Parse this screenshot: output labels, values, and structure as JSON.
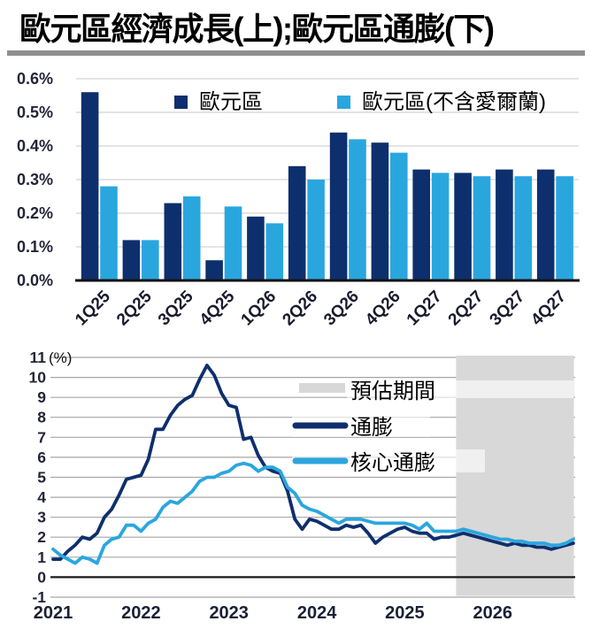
{
  "title": "歐元區經濟成長(上);歐元區通膨(下)",
  "colors": {
    "dark_navy": "#0e2f6d",
    "light_blue": "#2aa6df",
    "forecast_shade": "#d8d8d8",
    "title_rule_gray": "#8f8f8f",
    "grid_gray_top": "#dcdcdc",
    "grid_gray_bottom": "#a6a6a6"
  },
  "chart_data": [
    {
      "type": "bar",
      "title_part": "歐元區經濟成長(上)",
      "categories": [
        "1Q25",
        "2Q25",
        "3Q25",
        "4Q25",
        "1Q26",
        "2Q26",
        "3Q26",
        "4Q26",
        "1Q27",
        "2Q27",
        "3Q27",
        "4Q27"
      ],
      "series": [
        {
          "key": "euro-area",
          "name": "歐元區",
          "color": "#0e2f6d",
          "values": [
            0.56,
            0.12,
            0.23,
            0.06,
            0.19,
            0.34,
            0.44,
            0.41,
            0.33,
            0.32,
            0.33,
            0.33
          ]
        },
        {
          "key": "euro-area-ex-ireland",
          "name": "歐元區(不含愛爾蘭)",
          "color": "#2aa6df",
          "values": [
            0.28,
            0.12,
            0.25,
            0.22,
            0.17,
            0.3,
            0.42,
            0.38,
            0.32,
            0.31,
            0.31,
            0.31
          ]
        }
      ],
      "y_ticks": {
        "values": [
          0,
          0.1,
          0.2,
          0.3,
          0.4,
          0.5,
          0.6
        ],
        "labels": [
          "0.0%",
          "0.1%",
          "0.2%",
          "0.3%",
          "0.4%",
          "0.5%",
          "0.6%"
        ]
      },
      "ylim": [
        0,
        0.6
      ],
      "grid": true,
      "legend_position": "top-inside"
    },
    {
      "type": "line",
      "title_part": "歐元區通膨(下)",
      "unit_label": "(%)",
      "x_start": "2021-01",
      "x_tick_labels": [
        "2021",
        "2022",
        "2023",
        "2024",
        "2025",
        "2026"
      ],
      "x_tick_month_indices": [
        0,
        12,
        24,
        36,
        48,
        60
      ],
      "y_ticks": {
        "values": [
          11,
          10,
          9,
          8,
          7,
          6,
          5,
          4,
          3,
          2,
          1,
          0,
          -1
        ],
        "labels": [
          "11",
          "10",
          "9",
          "8",
          "7",
          "6",
          "5",
          "4",
          "3",
          "2",
          "1",
          "0",
          "-1"
        ]
      },
      "ylim": [
        -1,
        11
      ],
      "grid": true,
      "legend_position": "right-inside",
      "forecast": {
        "label": "預估期間",
        "color": "#d8d8d8",
        "start_month_index": 55
      },
      "series": [
        {
          "key": "inflation",
          "name": "通膨",
          "color": "#0e2f6d",
          "values": [
            0.9,
            0.9,
            1.3,
            1.6,
            2.0,
            1.9,
            2.2,
            3.0,
            3.4,
            4.1,
            4.9,
            5.0,
            5.1,
            5.9,
            7.4,
            7.4,
            8.1,
            8.6,
            8.9,
            9.1,
            9.9,
            10.6,
            10.1,
            9.2,
            8.6,
            8.5,
            6.9,
            7.0,
            6.1,
            5.5,
            5.3,
            5.2,
            4.3,
            2.9,
            2.4,
            2.9,
            2.8,
            2.6,
            2.4,
            2.4,
            2.6,
            2.5,
            2.6,
            2.2,
            1.7,
            2.0,
            2.2,
            2.4,
            2.5,
            2.3,
            2.2,
            2.2,
            1.9,
            2.0,
            2.0,
            2.1,
            2.2,
            2.1,
            2.0,
            1.9,
            1.8,
            1.7,
            1.6,
            1.7,
            1.6,
            1.6,
            1.5,
            1.5,
            1.4,
            1.5,
            1.6,
            1.7
          ]
        },
        {
          "key": "core-inflation",
          "name": "核心通膨",
          "color": "#2aa6df",
          "values": [
            1.4,
            1.1,
            0.9,
            0.7,
            1.0,
            0.9,
            0.7,
            1.6,
            1.9,
            2.0,
            2.6,
            2.6,
            2.3,
            2.7,
            2.9,
            3.5,
            3.8,
            3.7,
            4.0,
            4.3,
            4.8,
            5.0,
            5.0,
            5.2,
            5.3,
            5.6,
            5.7,
            5.6,
            5.3,
            5.5,
            5.5,
            5.3,
            4.5,
            4.2,
            3.6,
            3.4,
            3.3,
            3.1,
            2.9,
            2.7,
            2.9,
            2.9,
            2.9,
            2.8,
            2.7,
            2.7,
            2.7,
            2.7,
            2.7,
            2.6,
            2.4,
            2.7,
            2.3,
            2.3,
            2.3,
            2.3,
            2.4,
            2.3,
            2.2,
            2.1,
            2.0,
            1.9,
            1.9,
            1.8,
            1.8,
            1.7,
            1.7,
            1.7,
            1.6,
            1.6,
            1.7,
            1.9
          ]
        }
      ]
    }
  ]
}
